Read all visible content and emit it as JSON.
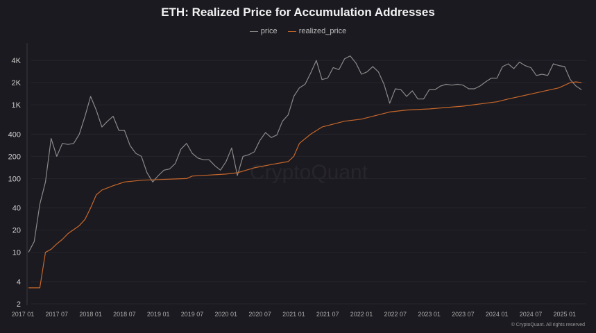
{
  "title": "ETH: Realized Price for Accumulation Addresses",
  "legend": [
    {
      "name": "price",
      "color": "#8a8a8a"
    },
    {
      "name": "realized_price",
      "color": "#c8672a"
    }
  ],
  "watermark": "CryptoQuant",
  "copyright": "© CryptoQuant. All rights reserved",
  "chart_data": {
    "type": "line",
    "title": "ETH: Realized Price for Accumulation Addresses",
    "y_scale": "log",
    "ylim": [
      2,
      6000
    ],
    "xlim": [
      "2017-01",
      "2025-04"
    ],
    "grid": true,
    "legend_position": "top",
    "y_ticks": [
      {
        "value": 2,
        "label": "2"
      },
      {
        "value": 4,
        "label": "4"
      },
      {
        "value": 10,
        "label": "10"
      },
      {
        "value": 20,
        "label": "20"
      },
      {
        "value": 40,
        "label": "40"
      },
      {
        "value": 100,
        "label": "100"
      },
      {
        "value": 200,
        "label": "200"
      },
      {
        "value": 400,
        "label": "400"
      },
      {
        "value": 1000,
        "label": "1K"
      },
      {
        "value": 2000,
        "label": "2K"
      },
      {
        "value": 4000,
        "label": "4K"
      }
    ],
    "x_ticks": [
      "2017 01",
      "2017 07",
      "2018 01",
      "2018 07",
      "2019 01",
      "2019 07",
      "2020 01",
      "2020 07",
      "2021 01",
      "2021 07",
      "2022 01",
      "2022 07",
      "2023 01",
      "2023 07",
      "2024 01",
      "2024 07",
      "2025 01"
    ],
    "series": [
      {
        "name": "price",
        "color": "#8a8a8a",
        "points": [
          [
            "2017-02",
            10
          ],
          [
            "2017-03",
            14
          ],
          [
            "2017-04",
            45
          ],
          [
            "2017-05",
            90
          ],
          [
            "2017-06",
            350
          ],
          [
            "2017-07",
            200
          ],
          [
            "2017-08",
            300
          ],
          [
            "2017-09",
            290
          ],
          [
            "2017-10",
            300
          ],
          [
            "2017-11",
            400
          ],
          [
            "2017-12",
            700
          ],
          [
            "2018-01",
            1300
          ],
          [
            "2018-02",
            850
          ],
          [
            "2018-03",
            500
          ],
          [
            "2018-04",
            600
          ],
          [
            "2018-05",
            700
          ],
          [
            "2018-06",
            450
          ],
          [
            "2018-07",
            450
          ],
          [
            "2018-08",
            280
          ],
          [
            "2018-09",
            220
          ],
          [
            "2018-10",
            200
          ],
          [
            "2018-11",
            120
          ],
          [
            "2018-12",
            90
          ],
          [
            "2019-01",
            110
          ],
          [
            "2019-02",
            130
          ],
          [
            "2019-03",
            135
          ],
          [
            "2019-04",
            160
          ],
          [
            "2019-05",
            250
          ],
          [
            "2019-06",
            300
          ],
          [
            "2019-07",
            220
          ],
          [
            "2019-08",
            190
          ],
          [
            "2019-09",
            180
          ],
          [
            "2019-10",
            180
          ],
          [
            "2019-11",
            150
          ],
          [
            "2019-12",
            130
          ],
          [
            "2020-01",
            170
          ],
          [
            "2020-02",
            260
          ],
          [
            "2020-03",
            110
          ],
          [
            "2020-04",
            200
          ],
          [
            "2020-05",
            210
          ],
          [
            "2020-06",
            230
          ],
          [
            "2020-07",
            330
          ],
          [
            "2020-08",
            420
          ],
          [
            "2020-09",
            360
          ],
          [
            "2020-10",
            390
          ],
          [
            "2020-11",
            600
          ],
          [
            "2020-12",
            730
          ],
          [
            "2021-01",
            1300
          ],
          [
            "2021-02",
            1700
          ],
          [
            "2021-03",
            1900
          ],
          [
            "2021-04",
            2700
          ],
          [
            "2021-05",
            4000
          ],
          [
            "2021-06",
            2200
          ],
          [
            "2021-07",
            2300
          ],
          [
            "2021-08",
            3200
          ],
          [
            "2021-09",
            3000
          ],
          [
            "2021-10",
            4200
          ],
          [
            "2021-11",
            4600
          ],
          [
            "2021-12",
            3700
          ],
          [
            "2022-01",
            2600
          ],
          [
            "2022-02",
            2800
          ],
          [
            "2022-03",
            3300
          ],
          [
            "2022-04",
            2800
          ],
          [
            "2022-05",
            1900
          ],
          [
            "2022-06",
            1050
          ],
          [
            "2022-07",
            1650
          ],
          [
            "2022-08",
            1600
          ],
          [
            "2022-09",
            1300
          ],
          [
            "2022-10",
            1550
          ],
          [
            "2022-11",
            1200
          ],
          [
            "2022-12",
            1200
          ],
          [
            "2023-01",
            1600
          ],
          [
            "2023-02",
            1600
          ],
          [
            "2023-03",
            1800
          ],
          [
            "2023-04",
            1900
          ],
          [
            "2023-05",
            1850
          ],
          [
            "2023-06",
            1900
          ],
          [
            "2023-07",
            1850
          ],
          [
            "2023-08",
            1650
          ],
          [
            "2023-09",
            1650
          ],
          [
            "2023-10",
            1800
          ],
          [
            "2023-11",
            2050
          ],
          [
            "2023-12",
            2300
          ],
          [
            "2024-01",
            2300
          ],
          [
            "2024-02",
            3300
          ],
          [
            "2024-03",
            3600
          ],
          [
            "2024-04",
            3100
          ],
          [
            "2024-05",
            3800
          ],
          [
            "2024-06",
            3400
          ],
          [
            "2024-07",
            3200
          ],
          [
            "2024-08",
            2500
          ],
          [
            "2024-09",
            2600
          ],
          [
            "2024-10",
            2500
          ],
          [
            "2024-11",
            3600
          ],
          [
            "2024-12",
            3400
          ],
          [
            "2025-01",
            3300
          ],
          [
            "2025-02",
            2200
          ],
          [
            "2025-03",
            1800
          ],
          [
            "2025-04",
            1600
          ]
        ]
      },
      {
        "name": "realized_price",
        "color": "#c8672a",
        "points": [
          [
            "2017-02",
            3.3
          ],
          [
            "2017-04",
            3.3
          ],
          [
            "2017-05",
            10
          ],
          [
            "2017-06",
            11
          ],
          [
            "2017-07",
            13
          ],
          [
            "2017-08",
            15
          ],
          [
            "2017-09",
            18
          ],
          [
            "2017-11",
            23
          ],
          [
            "2017-12",
            28
          ],
          [
            "2018-01",
            40
          ],
          [
            "2018-02",
            60
          ],
          [
            "2018-03",
            70
          ],
          [
            "2018-05",
            80
          ],
          [
            "2018-07",
            90
          ],
          [
            "2018-10",
            95
          ],
          [
            "2019-01",
            97
          ],
          [
            "2019-06",
            100
          ],
          [
            "2019-07",
            108
          ],
          [
            "2020-01",
            115
          ],
          [
            "2020-03",
            120
          ],
          [
            "2020-06",
            140
          ],
          [
            "2020-09",
            155
          ],
          [
            "2020-12",
            170
          ],
          [
            "2021-01",
            200
          ],
          [
            "2021-02",
            300
          ],
          [
            "2021-04",
            400
          ],
          [
            "2021-06",
            500
          ],
          [
            "2021-10",
            600
          ],
          [
            "2022-01",
            640
          ],
          [
            "2022-06",
            800
          ],
          [
            "2022-09",
            850
          ],
          [
            "2023-01",
            880
          ],
          [
            "2023-07",
            960
          ],
          [
            "2024-01",
            1100
          ],
          [
            "2024-03",
            1200
          ],
          [
            "2024-07",
            1400
          ],
          [
            "2024-12",
            1700
          ],
          [
            "2025-02",
            2000
          ],
          [
            "2025-03",
            2050
          ],
          [
            "2025-04",
            2000
          ]
        ]
      }
    ]
  }
}
